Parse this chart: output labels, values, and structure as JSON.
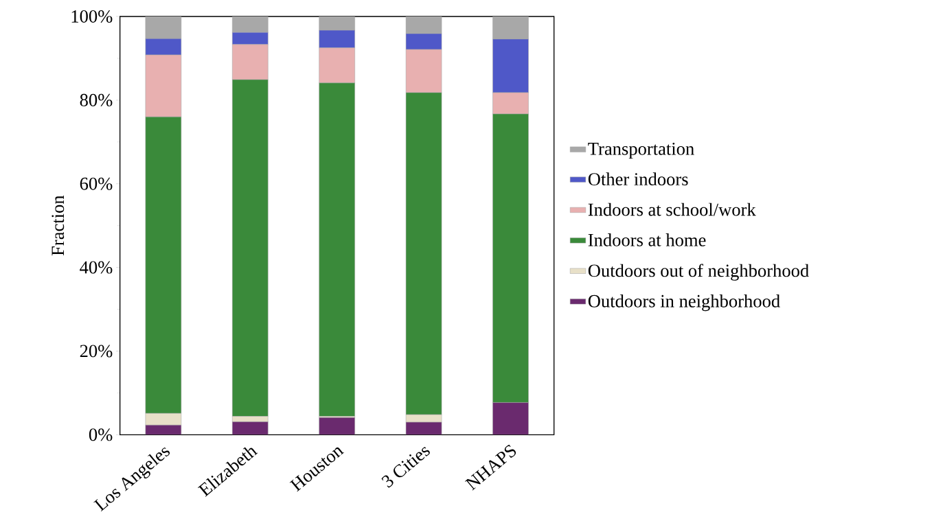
{
  "chart_data": {
    "type": "bar",
    "stacked": true,
    "ylabel": "Fraction",
    "categories": [
      "Los Angeles",
      "Elizabeth",
      "Houston",
      "3 Cities",
      "NHAPS"
    ],
    "series": [
      {
        "name": "Outdoors in neighborhood",
        "color": "#6a2a6e",
        "values": [
          2.3,
          3.1,
          4.1,
          3.0,
          7.7
        ]
      },
      {
        "name": "Outdoors out of neighborhood",
        "color": "#e8e0c8",
        "values": [
          2.8,
          1.3,
          0.3,
          1.8,
          0
        ]
      },
      {
        "name": "Indoors at home",
        "color": "#3a8a3a",
        "values": [
          70.9,
          80.5,
          79.7,
          77.0,
          69.0
        ]
      },
      {
        "name": "Indoors at school/work",
        "color": "#e8b0b0",
        "values": [
          14.8,
          8.4,
          8.4,
          10.3,
          5.1
        ]
      },
      {
        "name": "Other indoors",
        "color": "#4f58c8",
        "values": [
          3.9,
          2.9,
          4.2,
          3.8,
          12.8
        ]
      },
      {
        "name": "Transportation",
        "color": "#a8a8a8",
        "values": [
          5.3,
          3.8,
          3.3,
          4.1,
          5.4
        ]
      }
    ],
    "ylim": [
      0,
      100
    ],
    "yticks": [
      {
        "value": 0,
        "label": "0%"
      },
      {
        "value": 20,
        "label": "20%"
      },
      {
        "value": 40,
        "label": "40%"
      },
      {
        "value": 60,
        "label": "60%"
      },
      {
        "value": 80,
        "label": "80%"
      },
      {
        "value": 100,
        "label": "100%"
      }
    ],
    "legend": "right",
    "grid": false
  }
}
